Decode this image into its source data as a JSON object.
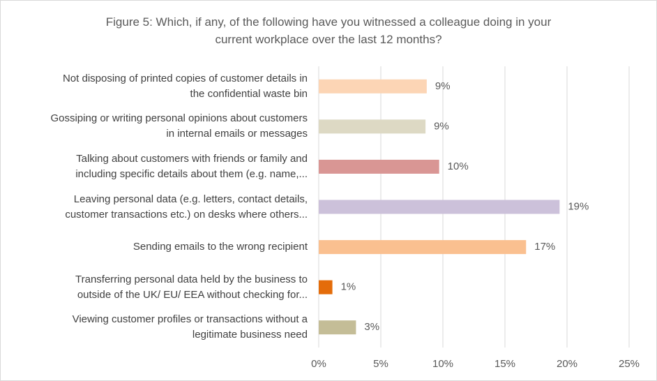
{
  "chart_data": {
    "type": "bar",
    "orientation": "horizontal",
    "title": "Figure 5: Which, if any, of the following have you witnessed a colleague doing in your\ncurrent workplace over the last 12 months?",
    "categories": [
      "Not disposing of printed copies of customer details in\nthe confidential waste bin",
      "Gossiping or writing personal opinions about customers\nin internal emails or messages",
      "Talking about customers with friends or family and\nincluding specific details about them (e.g. name,...",
      "Leaving personal data (e.g. letters, contact details,\ncustomer transactions etc.) on desks where others...",
      "Sending emails to the wrong recipient",
      "Transferring personal data held by the business to\noutside of the UK/ EU/ EEA without checking for...",
      "Viewing customer profiles or transactions without a\nlegitimate business need"
    ],
    "values": [
      8.7,
      8.6,
      9.7,
      19.4,
      16.7,
      1.1,
      3.0
    ],
    "value_labels": [
      "9%",
      "9%",
      "10%",
      "19%",
      "17%",
      "1%",
      "3%"
    ],
    "colors": [
      "#fcd5b5",
      "#ddd9c4",
      "#d99694",
      "#ccc1da",
      "#fac090",
      "#e46c0a",
      "#c4bd97"
    ],
    "xlim": [
      0,
      25
    ],
    "xticks": [
      {
        "value": 0,
        "label": "0%"
      },
      {
        "value": 5,
        "label": "5%"
      },
      {
        "value": 10,
        "label": "10%"
      },
      {
        "value": 15,
        "label": "15%"
      },
      {
        "value": 20,
        "label": "20%"
      },
      {
        "value": 25,
        "label": "25%"
      }
    ],
    "grid": true
  }
}
